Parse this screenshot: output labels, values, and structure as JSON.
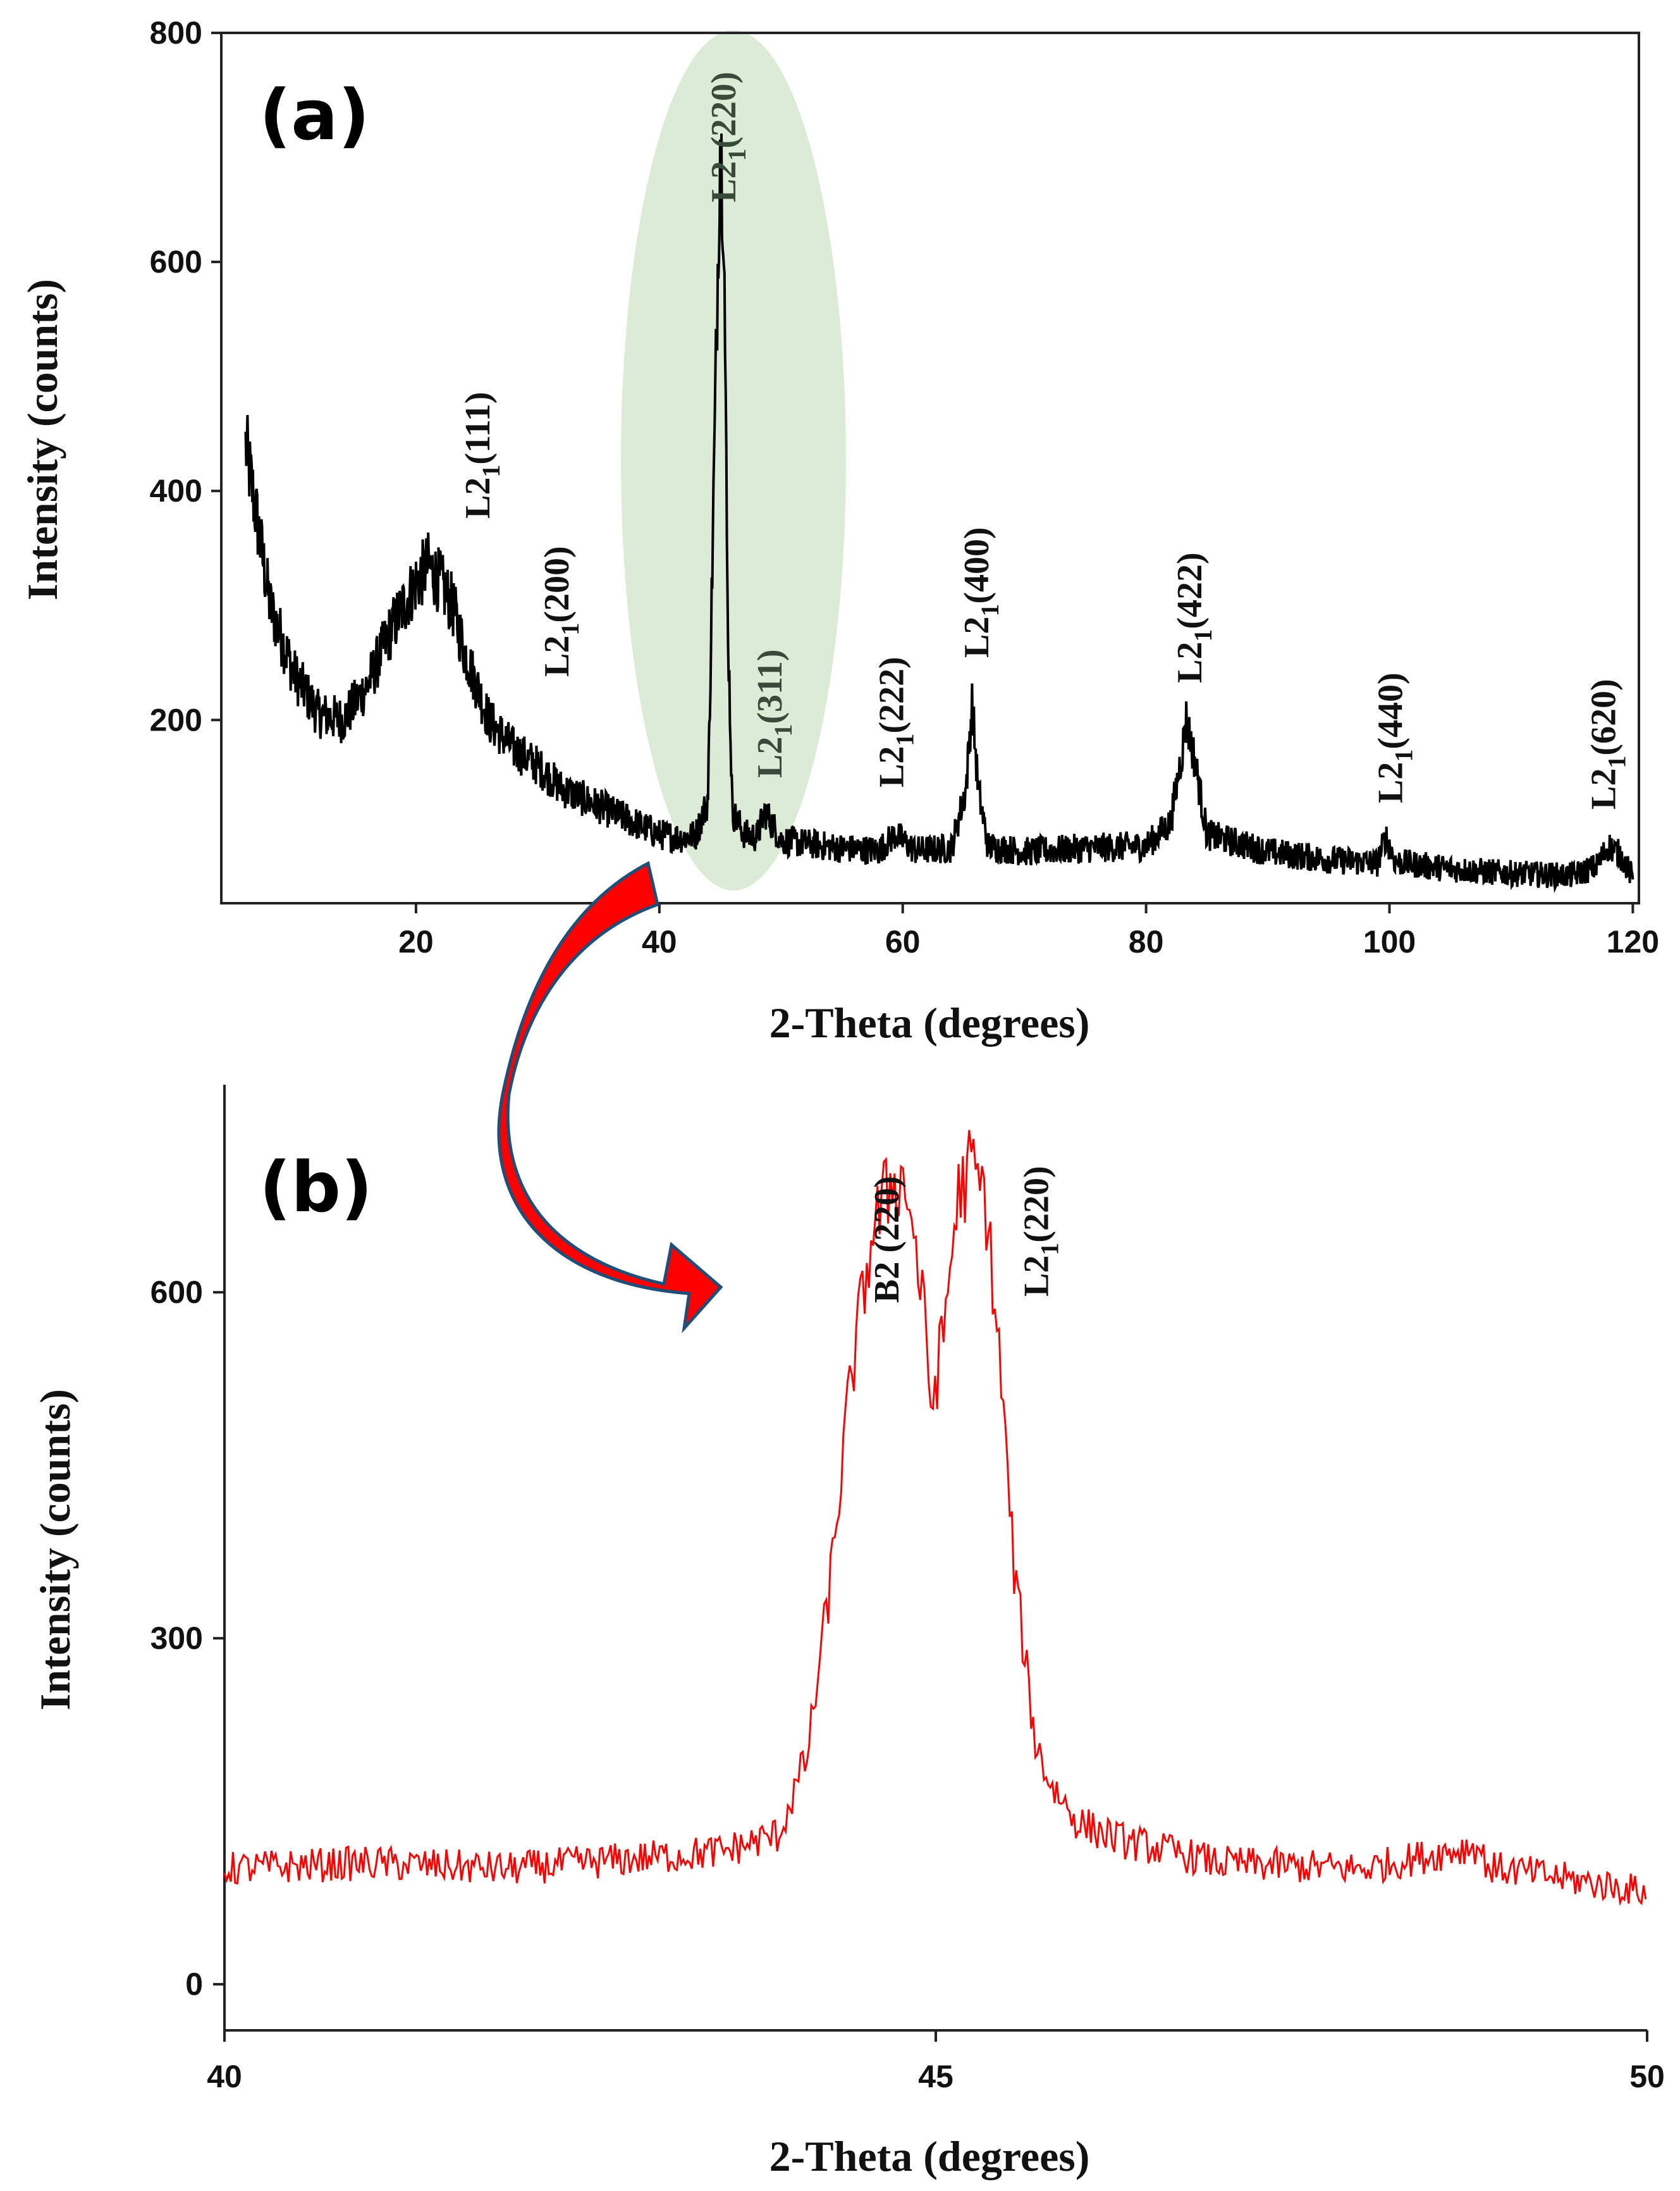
{
  "chart_data": [
    {
      "type": "line",
      "panel_label": "(a)",
      "xlabel": "2-Theta (degrees)",
      "ylabel": "Intensity (counts)",
      "xlim": [
        4,
        120.5
      ],
      "ylim": [
        40,
        800
      ],
      "xticks": [
        20,
        40,
        60,
        80,
        100,
        120
      ],
      "yticks": [
        200,
        400,
        600,
        800
      ],
      "series": [
        {
          "color": "#000000",
          "x": [
            6,
            8,
            10,
            12,
            14,
            16,
            18,
            20,
            21,
            22,
            23,
            24,
            26,
            28,
            30,
            32,
            34,
            36,
            38,
            40,
            42,
            43,
            44,
            44.6,
            45,
            45.3,
            45.6,
            46,
            47,
            48,
            48.7,
            50,
            55,
            58,
            59.4,
            61,
            64,
            65.2,
            65.7,
            66.2,
            67,
            70,
            75,
            80,
            82,
            83,
            83.3,
            84,
            85,
            90,
            95,
            99,
            99.7,
            100.5,
            105,
            110,
            115,
            117,
            118,
            119,
            120
          ],
          "y": [
            440,
            300,
            240,
            205,
            200,
            230,
            280,
            320,
            335,
            320,
            300,
            260,
            200,
            175,
            160,
            140,
            130,
            120,
            110,
            100,
            97,
            100,
            130,
            480,
            710,
            640,
            300,
            120,
            100,
            98,
            120,
            95,
            88,
            86,
            100,
            86,
            88,
            140,
            215,
            140,
            90,
            85,
            88,
            90,
            110,
            175,
            200,
            165,
            100,
            85,
            78,
            75,
            98,
            76,
            70,
            66,
            64,
            72,
            90,
            82,
            62
          ]
        }
      ],
      "annotations": [
        {
          "label": "L2",
          "sub": "1",
          "hkl": "(111)",
          "x": 25
        },
        {
          "label": "L2",
          "sub": "1",
          "hkl": "(200)",
          "x": 31.5
        },
        {
          "label": "L2",
          "sub": "1",
          "hkl": "(220)",
          "x": 45.2
        },
        {
          "label": "L2",
          "sub": "1",
          "hkl": "(311)",
          "x": 49
        },
        {
          "label": "L2",
          "sub": "1",
          "hkl": "(222)",
          "x": 59
        },
        {
          "label": "L2",
          "sub": "1",
          "hkl": "(400)",
          "x": 66
        },
        {
          "label": "L2",
          "sub": "1",
          "hkl": "(422)",
          "x": 83.5
        },
        {
          "label": "L2",
          "sub": "1",
          "hkl": "(440)",
          "x": 100
        },
        {
          "label": "L2",
          "sub": "1",
          "hkl": "(620)",
          "x": 117.5
        }
      ],
      "highlight_color": "#d9ead3"
    },
    {
      "type": "line",
      "panel_label": "(b)",
      "xlabel": "2-Theta (degrees)",
      "ylabel": "Intensity (counts)",
      "xlim": [
        40,
        50
      ],
      "ylim": [
        -40,
        780
      ],
      "xticks": [
        40,
        45,
        50
      ],
      "yticks": [
        0,
        300,
        600
      ],
      "series": [
        {
          "color": "#ff0000",
          "x": [
            40,
            41,
            42,
            43,
            43.5,
            43.9,
            44.1,
            44.25,
            44.4,
            44.55,
            44.7,
            44.8,
            44.9,
            44.97,
            45.05,
            45.15,
            45.25,
            45.35,
            45.45,
            45.55,
            45.7,
            45.8,
            46,
            46.3,
            47,
            48,
            48.8,
            48.9,
            49,
            50
          ],
          "y": [
            100,
            105,
            100,
            110,
            115,
            130,
            200,
            340,
            520,
            650,
            700,
            690,
            600,
            500,
            560,
            680,
            710,
            680,
            540,
            360,
            210,
            175,
            140,
            125,
            105,
            100,
            120,
            100,
            100,
            80
          ]
        }
      ],
      "annotations": [
        {
          "label": "B2 (220)",
          "x": 44.65
        },
        {
          "label": "L2",
          "sub": "1",
          "hkl": "(220)",
          "x": 45.7
        }
      ]
    }
  ],
  "arrow_color": "#ff0000"
}
